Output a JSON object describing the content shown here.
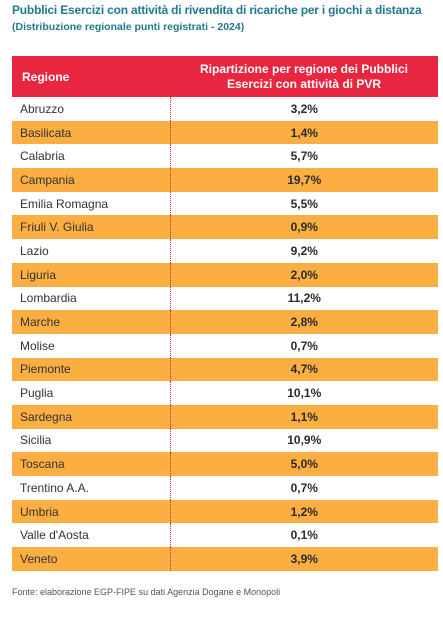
{
  "title": "Pubblici Esercizi con attività di rivendita di ricariche per i giochi a distanza",
  "subtitle": "(Distribuzione regionale punti registrati - 2024)",
  "source": "Fonte: elaborazione EGP-FIPE su dati Agenzia Dogane e Monopoli",
  "colors": {
    "header_bg": "#e8263f",
    "stripe": "#fbae42",
    "title": "#1f7a8c"
  },
  "chart_data": {
    "type": "table",
    "columns": [
      "Regione",
      "Ripartizione per regione dei Pubblici Esercizi con attività di PVR"
    ],
    "rows": [
      {
        "region": "Abruzzo",
        "value": "3,2%"
      },
      {
        "region": "Basilicata",
        "value": "1,4%"
      },
      {
        "region": "Calabria",
        "value": "5,7%"
      },
      {
        "region": "Campania",
        "value": "19,7%"
      },
      {
        "region": "Emilia Romagna",
        "value": "5,5%"
      },
      {
        "region": "Friuli V. Giulia",
        "value": "0,9%"
      },
      {
        "region": "Lazio",
        "value": "9,2%"
      },
      {
        "region": "Liguria",
        "value": "2,0%"
      },
      {
        "region": "Lombardia",
        "value": "11,2%"
      },
      {
        "region": "Marche",
        "value": "2,8%"
      },
      {
        "region": "Molise",
        "value": "0,7%"
      },
      {
        "region": "Piemonte",
        "value": "4,7%"
      },
      {
        "region": "Puglia",
        "value": "10,1%"
      },
      {
        "region": "Sardegna",
        "value": "1,1%"
      },
      {
        "region": "Sicilia",
        "value": "10,9%"
      },
      {
        "region": "Toscana",
        "value": "5,0%"
      },
      {
        "region": "Trentino A.A.",
        "value": "0,7%"
      },
      {
        "region": "Umbria",
        "value": "1,2%"
      },
      {
        "region": "Valle d'Aosta",
        "value": "0,1%"
      },
      {
        "region": "Veneto",
        "value": "3,9%"
      }
    ]
  }
}
